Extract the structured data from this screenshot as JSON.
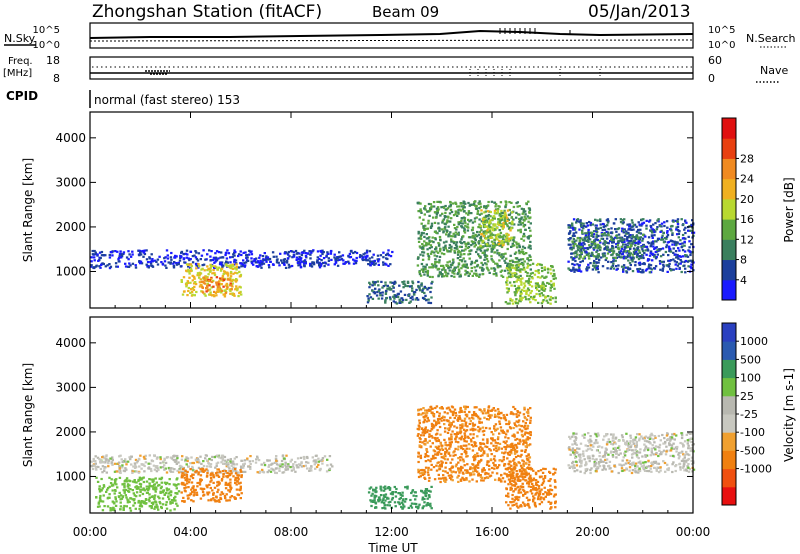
{
  "header": {
    "station": "Zhongshan Station (fitACF)",
    "beam": "Beam 09",
    "date": "05/Jan/2013",
    "cpid_label": "CPID",
    "cpid_text": "normal (fast stereo) 153"
  },
  "status_panels": {
    "nsky_label": "N.Sky",
    "nsky_ticks": [
      "10^5",
      "10^0"
    ],
    "nsearch_label": "N.Search",
    "nsearch_ticks": [
      "10^5",
      "10^0"
    ],
    "freq_label": "Freq.",
    "freq_unit": "[MHz]",
    "freq_ticks": [
      "18",
      "8"
    ],
    "nave_label": "Nave",
    "nave_ticks": [
      "60",
      "0"
    ]
  },
  "colors": {
    "power": [
      "#1a1aff",
      "#1c3f9c",
      "#3a7f5e",
      "#5da840",
      "#b8d830",
      "#f0b020",
      "#f08a20",
      "#e84010",
      "#e01010"
    ],
    "velocity": [
      "#e81010",
      "#f05010",
      "#f08010",
      "#f0a030",
      "#c8c8c0",
      "#b8b8b0",
      "#70c040",
      "#3a9a5a",
      "#2a5ab0",
      "#2a40c0"
    ]
  },
  "chart_data": [
    {
      "type": "heatmap",
      "title": "Power",
      "xlabel": "Time UT",
      "ylabel": "Slant Range [km]",
      "xlim": [
        "00:00",
        "24:00"
      ],
      "ylim": [
        180,
        4580
      ],
      "x_ticks": [
        "00:00",
        "04:00",
        "08:00",
        "12:00",
        "16:00",
        "20:00",
        "00:00"
      ],
      "y_ticks": [
        1000,
        2000,
        3000,
        4000
      ],
      "colorbar_label": "Power [dB]",
      "colorbar_ticks": [
        "4",
        "8",
        "12",
        "16",
        "20",
        "24",
        "28"
      ],
      "regions": [
        {
          "t0": 0.0,
          "t1": 9.6,
          "r0": 1100,
          "r1": 1500,
          "v": 6
        },
        {
          "t0": 3.6,
          "t1": 6.0,
          "r0": 450,
          "r1": 1200,
          "v": 22
        },
        {
          "t0": 4.4,
          "t1": 5.6,
          "r0": 500,
          "r1": 900,
          "v": 28
        },
        {
          "t0": 9.6,
          "t1": 12.0,
          "r0": 1150,
          "r1": 1500,
          "v": 6
        },
        {
          "t0": 11.0,
          "t1": 13.6,
          "r0": 300,
          "r1": 800,
          "v": 10
        },
        {
          "t0": 13.0,
          "t1": 17.5,
          "r0": 900,
          "r1": 2600,
          "v": 14
        },
        {
          "t0": 15.5,
          "t1": 16.8,
          "r0": 1600,
          "r1": 2400,
          "v": 20
        },
        {
          "t0": 16.5,
          "t1": 18.5,
          "r0": 300,
          "r1": 1200,
          "v": 18
        },
        {
          "t0": 19.0,
          "t1": 24.0,
          "r0": 1000,
          "r1": 2200,
          "v": 8
        },
        {
          "t0": 19.0,
          "t1": 22.0,
          "r0": 1300,
          "r1": 1900,
          "v": 12
        }
      ]
    },
    {
      "type": "heatmap",
      "title": "Velocity",
      "xlabel": "Time UT",
      "ylabel": "Slant Range [km]",
      "xlim": [
        "00:00",
        "24:00"
      ],
      "ylim": [
        180,
        4580
      ],
      "x_ticks": [
        "00:00",
        "04:00",
        "08:00",
        "12:00",
        "16:00",
        "20:00",
        "00:00"
      ],
      "y_ticks": [
        1000,
        2000,
        3000,
        4000
      ],
      "colorbar_label": "Velocity [m s-1]",
      "colorbar_ticks": [
        "1000",
        "500",
        "100",
        "25",
        "-25",
        "-100",
        "-500",
        "-1000"
      ],
      "regions": [
        {
          "t0": 0.0,
          "t1": 9.6,
          "r0": 1100,
          "r1": 1500,
          "v": 0
        },
        {
          "t0": 3.6,
          "t1": 6.0,
          "r0": 450,
          "r1": 1200,
          "v": -200
        },
        {
          "t0": 0.2,
          "t1": 3.5,
          "r0": 250,
          "r1": 1000,
          "v": 60
        },
        {
          "t0": 11.0,
          "t1": 13.6,
          "r0": 300,
          "r1": 800,
          "v": 200
        },
        {
          "t0": 13.0,
          "t1": 17.5,
          "r0": 900,
          "r1": 2600,
          "v": -150
        },
        {
          "t0": 16.5,
          "t1": 18.5,
          "r0": 300,
          "r1": 1200,
          "v": -200
        },
        {
          "t0": 19.0,
          "t1": 24.0,
          "r0": 1100,
          "r1": 2000,
          "v": 0
        }
      ]
    }
  ]
}
